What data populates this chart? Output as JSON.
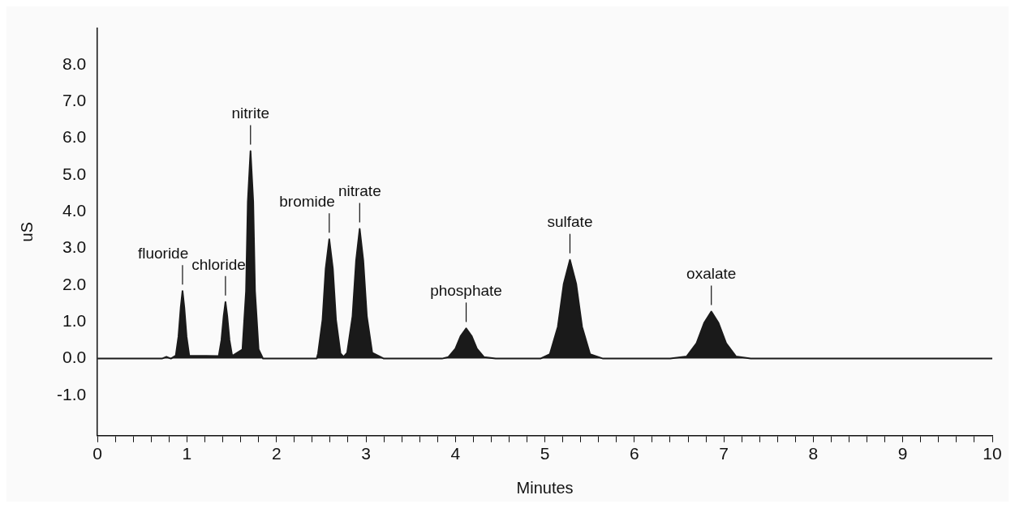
{
  "chart_data": {
    "type": "area",
    "xlabel": "Minutes",
    "ylabel": "uS",
    "x": [
      0,
      0.72,
      0.77,
      0.82,
      0.875,
      0.905,
      0.93,
      0.95,
      0.97,
      0.995,
      1.025,
      1.355,
      1.385,
      1.41,
      1.43,
      1.45,
      1.475,
      1.505,
      1.62,
      1.66,
      1.68,
      1.71,
      1.74,
      1.76,
      1.8,
      1.85,
      2.45,
      2.465,
      2.515,
      2.55,
      2.59,
      2.63,
      2.665,
      2.715,
      2.75,
      2.79,
      2.85,
      2.89,
      2.93,
      2.97,
      3.01,
      3.07,
      3.2,
      3.85,
      3.92,
      4.0,
      4.06,
      4.12,
      4.18,
      4.24,
      4.32,
      4.45,
      4.95,
      5.055,
      5.145,
      5.21,
      5.28,
      5.35,
      5.415,
      5.505,
      5.65,
      6.4,
      6.585,
      6.695,
      6.78,
      6.86,
      6.94,
      7.025,
      7.135,
      7.3,
      10
    ],
    "series": [
      {
        "color": "#1a1a1a",
        "values": [
          0,
          0,
          0.05,
          0,
          0.08,
          0.6,
          1.39,
          1.84,
          1.39,
          0.6,
          0.08,
          0.07,
          0.5,
          1.16,
          1.54,
          1.16,
          0.5,
          0.07,
          0.25,
          1.84,
          4.27,
          5.65,
          4.27,
          1.84,
          0.25,
          0,
          0,
          0.14,
          1.06,
          2.45,
          3.25,
          2.45,
          1.06,
          0.14,
          0.05,
          0.16,
          1.15,
          2.67,
          3.53,
          2.67,
          1.15,
          0.16,
          0,
          0,
          0.04,
          0.27,
          0.62,
          0.82,
          0.62,
          0.27,
          0.04,
          0,
          0,
          0.12,
          0.87,
          2.03,
          2.69,
          2.03,
          0.87,
          0.12,
          0,
          0,
          0.06,
          0.42,
          0.97,
          1.28,
          0.97,
          0.42,
          0.06,
          0,
          0
        ]
      }
    ],
    "annotations": [
      {
        "text": "fluoride",
        "x": 0.95,
        "y": 1.84
      },
      {
        "text": "chloride",
        "x": 1.43,
        "y": 1.54
      },
      {
        "text": "nitrite",
        "x": 1.71,
        "y": 5.65
      },
      {
        "text": "bromide",
        "x": 2.59,
        "y": 3.25
      },
      {
        "text": "nitrate",
        "x": 2.93,
        "y": 3.53
      },
      {
        "text": "phosphate",
        "x": 4.12,
        "y": 0.82
      },
      {
        "text": "sulfate",
        "x": 5.28,
        "y": 2.69
      },
      {
        "text": "oxalate",
        "x": 6.86,
        "y": 1.28
      }
    ],
    "xlim": [
      0,
      10
    ],
    "ylim": [
      -2.1,
      9
    ],
    "xticks": [
      0,
      {
        "value": 0.2,
        "label": null
      },
      {
        "value": 0.4,
        "label": null
      },
      {
        "value": 0.6,
        "label": null
      },
      {
        "value": 0.8,
        "label": null
      },
      1,
      {
        "value": 1.2,
        "label": null
      },
      {
        "value": 1.4,
        "label": null
      },
      {
        "value": 1.6,
        "label": null
      },
      {
        "value": 1.8,
        "label": null
      },
      2,
      {
        "value": 2.2,
        "label": null
      },
      {
        "value": 2.4,
        "label": null
      },
      {
        "value": 2.6,
        "label": null
      },
      {
        "value": 2.8,
        "label": null
      },
      3,
      {
        "value": 3.2,
        "label": null
      },
      {
        "value": 3.4,
        "label": null
      },
      {
        "value": 3.6,
        "label": null
      },
      {
        "value": 3.8,
        "label": null
      },
      4,
      {
        "value": 4.2,
        "label": null
      },
      {
        "value": 4.4,
        "label": null
      },
      {
        "value": 4.6,
        "label": null
      },
      {
        "value": 4.8,
        "label": null
      },
      5,
      {
        "value": 5.2,
        "label": null
      },
      {
        "value": 5.4,
        "label": null
      },
      {
        "value": 5.6,
        "label": null
      },
      {
        "value": 5.8,
        "label": null
      },
      6,
      {
        "value": 6.2,
        "label": null
      },
      {
        "value": 6.4,
        "label": null
      },
      {
        "value": 6.6,
        "label": null
      },
      {
        "value": 6.8,
        "label": null
      },
      7,
      {
        "value": 7.2,
        "label": null
      },
      {
        "value": 7.4,
        "label": null
      },
      {
        "value": 7.6,
        "label": null
      },
      {
        "value": 7.8,
        "label": null
      },
      8,
      {
        "value": 8.2,
        "label": null
      },
      {
        "value": 8.4,
        "label": null
      },
      {
        "value": 8.6,
        "label": null
      },
      {
        "value": 8.8,
        "label": null
      },
      9,
      {
        "value": 9.2,
        "label": null
      },
      {
        "value": 9.4,
        "label": null
      },
      {
        "value": 9.6,
        "label": null
      },
      {
        "value": 9.8,
        "label": null
      },
      10
    ],
    "yticks": [
      {
        "value": -1,
        "label": "-1.0"
      },
      {
        "value": 0,
        "label": "0.0"
      },
      {
        "value": 1,
        "label": "1.0"
      },
      {
        "value": 2,
        "label": "2.0"
      },
      {
        "value": 3,
        "label": "3.0"
      },
      {
        "value": 4,
        "label": "4.0"
      },
      {
        "value": 5,
        "label": "5.0"
      },
      {
        "value": 6,
        "label": "6.0"
      },
      {
        "value": 7,
        "label": "7.0"
      },
      {
        "value": 8,
        "label": "8.0"
      }
    ],
    "grid": false,
    "legend": false,
    "marker": "none",
    "line_style": "solid"
  }
}
